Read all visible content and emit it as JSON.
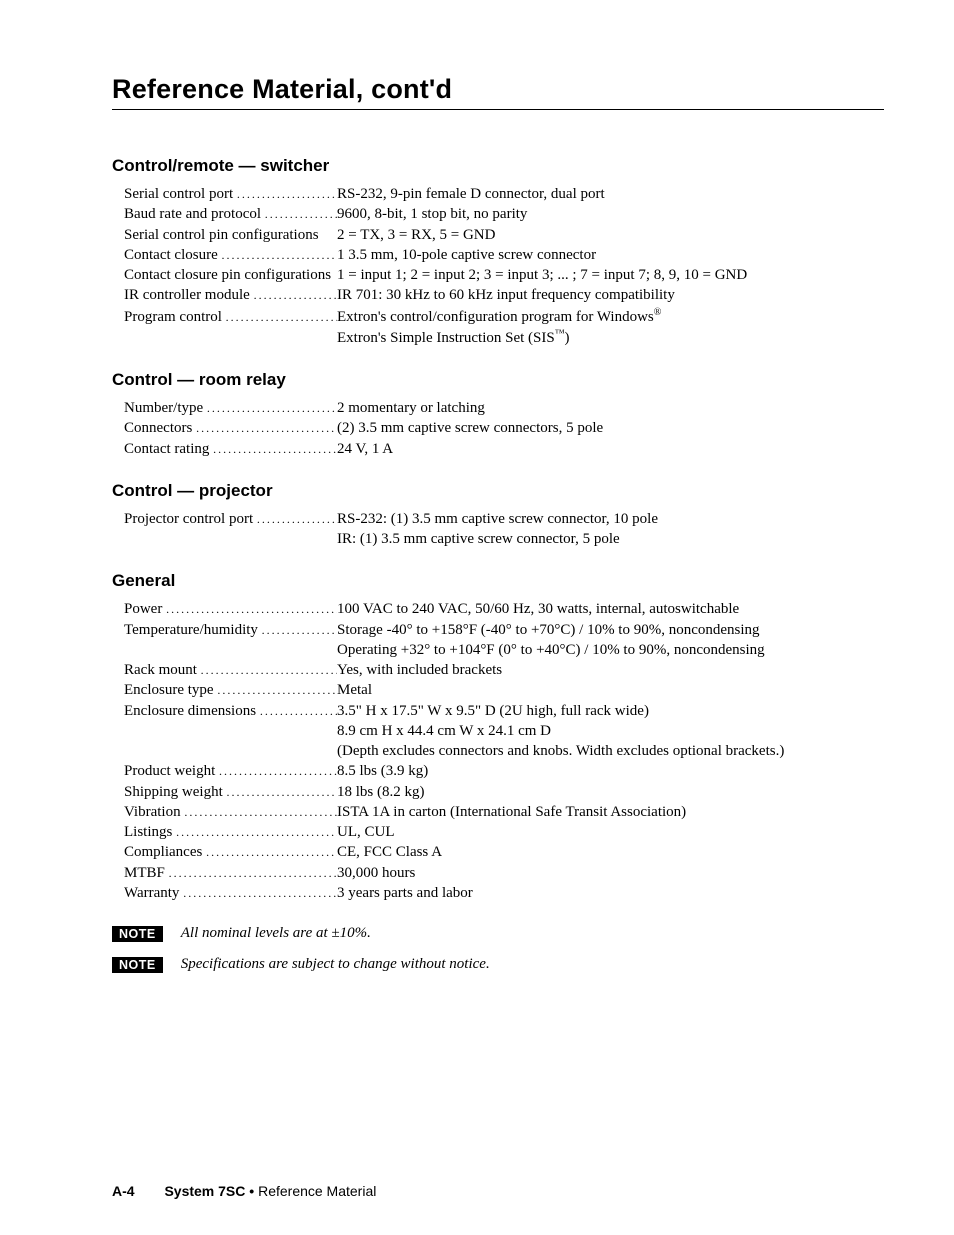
{
  "page_title": "Reference Material, cont'd",
  "sections": [
    {
      "title": "Control/remote — switcher",
      "rows": [
        {
          "label": "Serial control port",
          "value": "RS-232, 9-pin female D connector, dual port"
        },
        {
          "label": "Baud rate and protocol",
          "value": "9600, 8-bit, 1 stop bit, no parity"
        },
        {
          "label": "Serial control pin configurations",
          "value": "2 = TX,  3 = RX,  5 = GND",
          "nodots": true
        },
        {
          "label": "Contact closure",
          "value": "1   3.5 mm, 10-pole captive screw connector"
        },
        {
          "label": "Contact closure pin configurations",
          "value": "1 = input 1;  2 = input 2;  3 = input 3; ... ;  7 = input 7;  8, 9, 10 = GND",
          "nodots": true
        },
        {
          "label": "IR controller module",
          "value": "IR 701: 30 kHz to 60 kHz input frequency compatibility"
        },
        {
          "label": "Program control",
          "value": "Extron's control/configuration program for Windows",
          "suffix_sup": "®"
        },
        {
          "label": "",
          "value": "Extron's Simple Instruction Set (SIS",
          "suffix_sup": "™",
          "tail": ")"
        }
      ]
    },
    {
      "title": "Control — room relay",
      "rows": [
        {
          "label": "Number/type",
          "value": "2 momentary or latching"
        },
        {
          "label": "Connectors",
          "value": "(2) 3.5 mm captive screw connectors, 5 pole"
        },
        {
          "label": "Contact rating",
          "value": "24 V, 1 A"
        }
      ]
    },
    {
      "title": "Control — projector",
      "rows": [
        {
          "label": "Projector control port",
          "value": "RS-232: (1) 3.5 mm captive screw connector, 10 pole"
        },
        {
          "label": "",
          "value": "IR: (1) 3.5 mm captive screw connector, 5 pole"
        }
      ]
    },
    {
      "title": "General",
      "rows": [
        {
          "label": "Power",
          "value": "100 VAC to 240 VAC, 50/60 Hz, 30 watts, internal, autoswitchable"
        },
        {
          "label": "Temperature/humidity",
          "value": "Storage -40° to +158°F (-40° to +70°C) / 10% to 90%, noncondensing"
        },
        {
          "label": "",
          "value": "Operating +32° to +104°F (0° to +40°C) / 10% to 90%, noncondensing"
        },
        {
          "label": "Rack mount",
          "value": "Yes, with included brackets"
        },
        {
          "label": "Enclosure type",
          "value": "Metal"
        },
        {
          "label": "Enclosure dimensions",
          "value": "3.5\" H x 17.5\" W x 9.5\" D  (2U high, full rack wide)"
        },
        {
          "label": "",
          "value": "8.9 cm H x  44.4 cm W x  24.1 cm D"
        },
        {
          "label": "",
          "value": "(Depth excludes connectors and knobs.  Width excludes optional brackets.)"
        },
        {
          "label": "Product weight",
          "value": "8.5 lbs (3.9 kg)"
        },
        {
          "label": "Shipping weight",
          "value": "18 lbs (8.2 kg)"
        },
        {
          "label": "Vibration",
          "value": "ISTA 1A in carton (International Safe Transit Association)"
        },
        {
          "label": "Listings",
          "value": "UL, CUL"
        },
        {
          "label": "Compliances",
          "value": "CE, FCC Class A"
        },
        {
          "label": "MTBF",
          "value": "30,000 hours"
        },
        {
          "label": "Warranty",
          "value": "3 years parts and labor"
        }
      ]
    }
  ],
  "notes": [
    {
      "badge": "NOTE",
      "text": "All nominal levels are at ±10%."
    },
    {
      "badge": "NOTE",
      "text": "Specifications are subject to change without notice."
    }
  ],
  "footer": {
    "page_no": "A-4",
    "chapter": "System 7SC • ",
    "subtitle": "Reference Material"
  }
}
